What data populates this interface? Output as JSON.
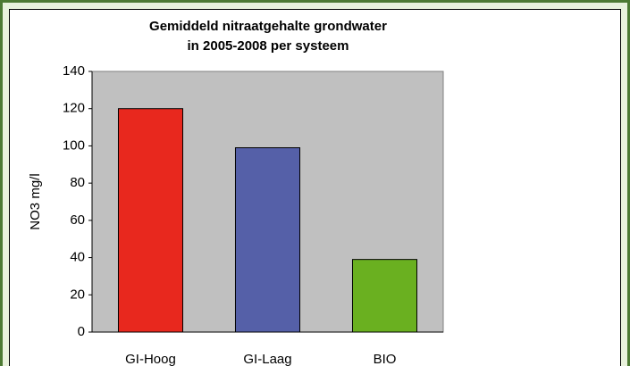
{
  "chart_data": {
    "type": "bar",
    "title": [
      "Gemiddeld nitraatgehalte grondwater",
      "in 2005-2008 per systeem"
    ],
    "y_label": "NO3 mg/l",
    "categories": [
      "GI-Hoog",
      "GI-Laag",
      "BIO"
    ],
    "values": [
      120,
      99,
      39
    ],
    "colors": [
      "#e8281e",
      "#5560a8",
      "#6ab020"
    ],
    "ylim": [
      0,
      140
    ],
    "yticks": [
      0,
      20,
      40,
      60,
      80,
      100,
      120,
      140
    ],
    "grid": false
  }
}
